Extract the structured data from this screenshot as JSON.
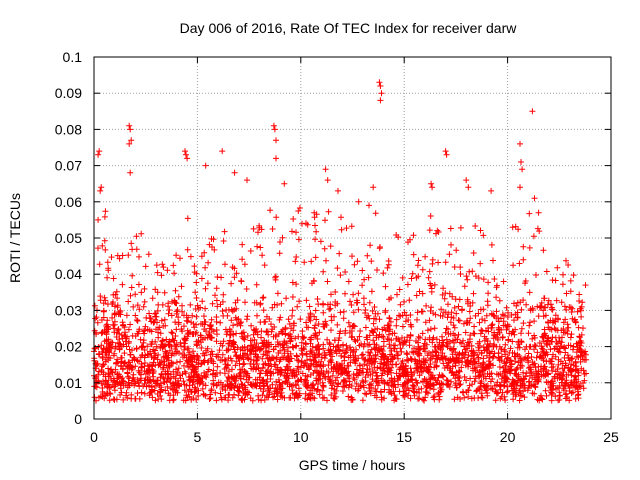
{
  "chart_data": {
    "type": "scatter",
    "title": "Day 006 of 2016, Rate Of TEC Index for receiver darw",
    "xlabel": "GPS time / hours",
    "ylabel": "ROTI / TECUs",
    "xlim": [
      0,
      25
    ],
    "ylim": [
      0,
      0.1
    ],
    "xticks": [
      0,
      5,
      10,
      15,
      20,
      25
    ],
    "xtick_labels": [
      "0",
      "5",
      "10",
      "15",
      "20",
      "25"
    ],
    "yticks": [
      0,
      0.01,
      0.02,
      0.03,
      0.04,
      0.05,
      0.06,
      0.07,
      0.08,
      0.09,
      0.1
    ],
    "ytick_labels": [
      "0",
      "0.01",
      "0.02",
      "0.03",
      "0.04",
      "0.05",
      "0.06",
      "0.07",
      "0.08",
      "0.09",
      "0.1"
    ],
    "grid": true,
    "marker": "+",
    "series": [
      {
        "name": "ROTI",
        "color": "#ff0000",
        "x_range": [
          0,
          23.8
        ],
        "envelope_x": [
          0,
          0.5,
          1,
          1.5,
          2,
          2.5,
          3,
          3.5,
          4,
          4.5,
          5,
          5.5,
          6,
          6.5,
          7,
          7.5,
          8,
          8.5,
          9,
          9.5,
          10,
          10.5,
          11,
          11.5,
          12,
          12.5,
          13,
          13.5,
          14,
          14.5,
          15,
          15.5,
          16,
          16.5,
          17,
          17.5,
          18,
          18.5,
          19,
          19.5,
          20,
          20.5,
          21,
          21.5,
          22,
          22.5,
          23,
          23.5
        ],
        "envelope_top": [
          0.045,
          0.055,
          0.04,
          0.045,
          0.05,
          0.045,
          0.04,
          0.04,
          0.045,
          0.055,
          0.05,
          0.045,
          0.05,
          0.05,
          0.045,
          0.05,
          0.05,
          0.055,
          0.055,
          0.05,
          0.055,
          0.055,
          0.06,
          0.06,
          0.055,
          0.055,
          0.05,
          0.055,
          0.05,
          0.05,
          0.045,
          0.05,
          0.05,
          0.055,
          0.05,
          0.05,
          0.05,
          0.055,
          0.045,
          0.045,
          0.05,
          0.05,
          0.055,
          0.05,
          0.045,
          0.04,
          0.04,
          0.04
        ],
        "bulk_range": [
          0.005,
          0.03
        ],
        "outliers": [
          [
            0.2,
            0.073
          ],
          [
            0.25,
            0.074
          ],
          [
            0.3,
            0.063
          ],
          [
            0.35,
            0.064
          ],
          [
            0.2,
            0.055
          ],
          [
            1.7,
            0.081
          ],
          [
            1.75,
            0.08
          ],
          [
            1.8,
            0.077
          ],
          [
            1.7,
            0.076
          ],
          [
            1.75,
            0.068
          ],
          [
            4.4,
            0.074
          ],
          [
            4.45,
            0.073
          ],
          [
            4.5,
            0.072
          ],
          [
            5.4,
            0.07
          ],
          [
            6.2,
            0.074
          ],
          [
            6.8,
            0.068
          ],
          [
            7.4,
            0.066
          ],
          [
            8.7,
            0.081
          ],
          [
            8.75,
            0.08
          ],
          [
            8.8,
            0.077
          ],
          [
            8.8,
            0.072
          ],
          [
            9.2,
            0.065
          ],
          [
            11.2,
            0.069
          ],
          [
            11.3,
            0.066
          ],
          [
            11.8,
            0.063
          ],
          [
            12.8,
            0.06
          ],
          [
            13.3,
            0.059
          ],
          [
            13.5,
            0.064
          ],
          [
            13.8,
            0.093
          ],
          [
            13.85,
            0.092
          ],
          [
            13.9,
            0.09
          ],
          [
            13.85,
            0.088
          ],
          [
            16.3,
            0.065
          ],
          [
            16.35,
            0.064
          ],
          [
            17.0,
            0.074
          ],
          [
            17.05,
            0.073
          ],
          [
            18.0,
            0.066
          ],
          [
            18.1,
            0.064
          ],
          [
            19.2,
            0.063
          ],
          [
            20.6,
            0.076
          ],
          [
            20.65,
            0.071
          ],
          [
            20.7,
            0.069
          ],
          [
            20.6,
            0.064
          ],
          [
            21.2,
            0.085
          ],
          [
            21.3,
            0.061
          ],
          [
            21.5,
            0.057
          ]
        ]
      }
    ]
  }
}
